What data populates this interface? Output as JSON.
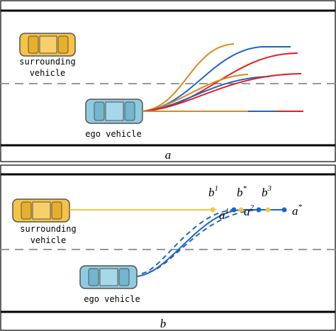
{
  "panel_a": {
    "surrounding_label": [
      "surrounding",
      "vehicle"
    ],
    "ego_label": "ego vehicle",
    "caption": "a"
  },
  "panel_b": {
    "surrounding_label": [
      "surrounding",
      "vehicle"
    ],
    "ego_label": "ego vehicle",
    "caption": "b",
    "points": [
      {
        "base": "b",
        "sup": "1"
      },
      {
        "base": "b",
        "sup": "*"
      },
      {
        "base": "b",
        "sup": "3"
      },
      {
        "base": "a",
        "sup": "1"
      },
      {
        "base": "a",
        "sup": "2"
      },
      {
        "base": "a",
        "sup": "*"
      }
    ]
  }
}
